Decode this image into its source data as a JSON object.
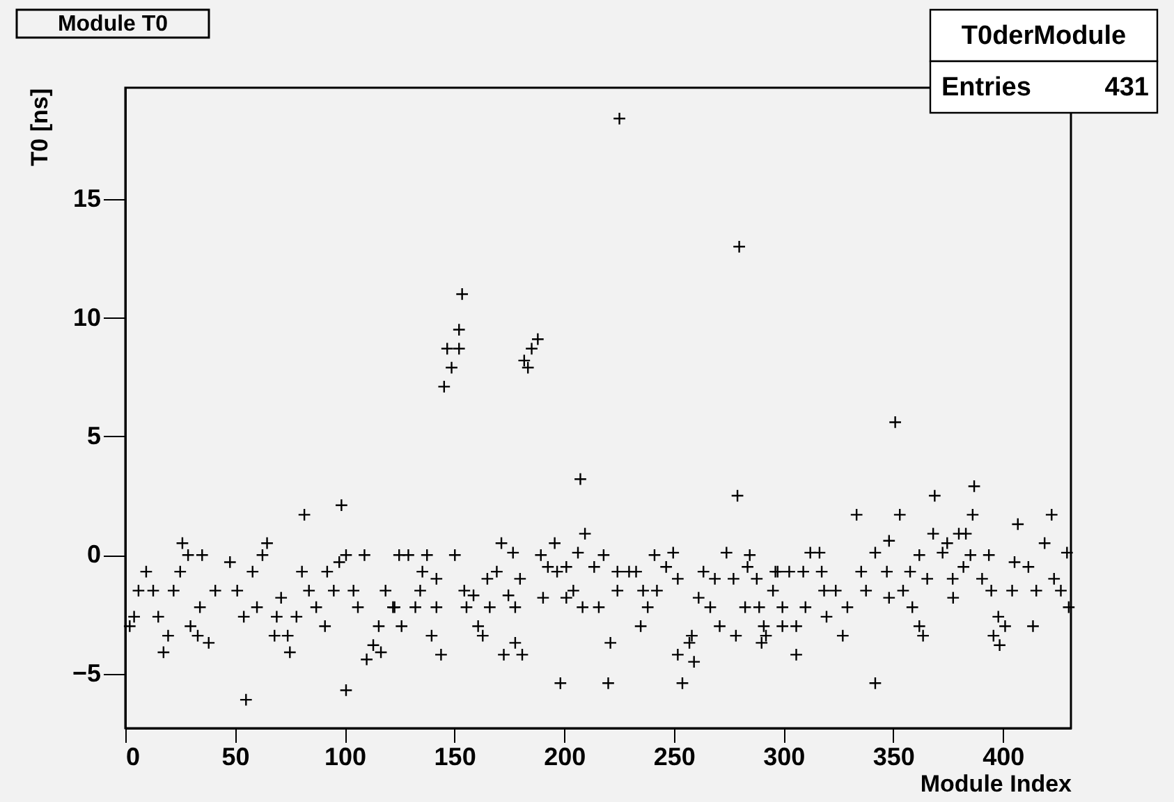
{
  "chart_data": {
    "type": "scatter",
    "title": "Module T0",
    "xlabel": "Module Index",
    "ylabel": "T0 [ns]",
    "annotations": [
      "T0derModule",
      "Entries 431"
    ],
    "xlim": [
      0,
      431
    ],
    "xticks": [
      0,
      50,
      100,
      150,
      200,
      250,
      300,
      350,
      400
    ],
    "ylim": [
      -7.3,
      19.7
    ],
    "yticks": [
      -5,
      0,
      5,
      10,
      15
    ],
    "grid": false,
    "legend": false,
    "marker": "cross",
    "series": [
      {
        "color": "#000000",
        "x": [
          2,
          4,
          6,
          9.5,
          12.7,
          15,
          17.4,
          19.5,
          22,
          25,
          26,
          28.6,
          35,
          29.7,
          33,
          38,
          34,
          41,
          47.7,
          51,
          54,
          55,
          58,
          60,
          64.6,
          62.5,
          68,
          69,
          71,
          75,
          74,
          78,
          81.6,
          80.5,
          83.7,
          87,
          91,
          92,
          95,
          97.5,
          98.5,
          100.6,
          100.6,
          104,
          106,
          109,
          110,
          113,
          116.5,
          115.5,
          118.6,
          122,
          124.8,
          129,
          137.5,
          150.2,
          135.4,
          141.8,
          134.4,
          122.7,
          132.2,
          141.8,
          125.9,
          139.6,
          143.9,
          154.5,
          158.7,
          155.5,
          160.8,
          162.9,
          165,
          169.3,
          171.4,
          176.7,
          166.1,
          174.6,
          177.7,
          179.9,
          172.5,
          177.7,
          180.9,
          189.4,
          195.7,
          192.6,
          190.4,
          196.8,
          201,
          204.2,
          201,
          198.3,
          207.4,
          209.5,
          206.3,
          213.7,
          218,
          208.4,
          215.8,
          220.1,
          221.1,
          224.3,
          229.6,
          232.8,
          224.3,
          236,
          234.9,
          238.1,
          241.2,
          246.5,
          249.7,
          251.8,
          242.3,
          253.9,
          251.8,
          257.1,
          259.2,
          258.2,
          263.5,
          268.7,
          261.3,
          266.6,
          270.9,
          274,
          277.2,
          278.3,
          279,
          284.6,
          283.6,
          287.8,
          282.5,
          288.9,
          291,
          290,
          292,
          296.3,
          295.2,
          145.3,
          146.7,
          148.7,
          152.1,
          152.1,
          153.5,
          181.8,
          183.5,
          185.2,
          188,
          225.2,
          279.8,
          350.9,
          297.3,
          299.5,
          299.5,
          305.8,
          305.8,
          302.6,
          309,
          310,
          312.2,
          316.4,
          317.4,
          318.5,
          323.8,
          319.6,
          327,
          329.1,
          333.3,
          335.4,
          337.6,
          341.8,
          341.8,
          347.1,
          348.1,
          348.1,
          353,
          354.5,
          358.7,
          357.7,
          361.9,
          361.9,
          363.6,
          365.5,
          368.2,
          368.9,
          372.5,
          374.6,
          377.1,
          377.3,
          379.9,
          383.1,
          382,
          386.2,
          386.9,
          385.2,
          390.5,
          393.6,
          394.7,
          397.9,
          395.7,
          398.5,
          401,
          404.2,
          406.8,
          405.3,
          411.6,
          413.7,
          415.2,
          419,
          422.2,
          423.3,
          426.4,
          429.2,
          430
        ],
        "values": [
          -3.0,
          -2.6,
          -1.5,
          -0.7,
          -1.5,
          -2.6,
          -4.1,
          -3.4,
          -1.5,
          -0.7,
          0.5,
          0,
          0,
          -3.0,
          -3.4,
          -3.7,
          -2.2,
          -1.5,
          -0.3,
          -1.5,
          -2.6,
          -6.1,
          -0.7,
          -2.2,
          0.5,
          0,
          -3.4,
          -2.6,
          -1.8,
          -4.1,
          -3.4,
          -2.6,
          1.7,
          -0.7,
          -1.5,
          -2.2,
          -3.0,
          -0.7,
          -1.5,
          -0.3,
          2.1,
          -5.7,
          0,
          -1.5,
          -2.2,
          0,
          -4.4,
          -3.8,
          -4.1,
          -3.0,
          -1.5,
          -2.2,
          0,
          0,
          0,
          0,
          -0.7,
          -1.0,
          -1.5,
          -2.2,
          -2.2,
          -2.2,
          -3.0,
          -3.4,
          -4.2,
          -1.5,
          -1.7,
          -2.2,
          -3.0,
          -3.4,
          -1.0,
          -0.7,
          0.5,
          0.1,
          -2.2,
          -1.7,
          -2.2,
          -1.0,
          -4.2,
          -3.7,
          -4.2,
          0,
          0.5,
          -0.5,
          -1.8,
          -0.7,
          -0.5,
          -1.5,
          -1.8,
          -5.4,
          3.2,
          0.9,
          0.1,
          -0.5,
          0,
          -2.2,
          -2.2,
          -5.4,
          -3.7,
          -0.7,
          -0.7,
          -0.7,
          -1.5,
          -1.5,
          -3.0,
          -2.2,
          0,
          -0.5,
          0.1,
          -1.0,
          -1.5,
          -5.4,
          -4.2,
          -3.7,
          -4.5,
          -3.4,
          -0.7,
          -1.0,
          -1.8,
          -2.2,
          -3.0,
          0.1,
          -1.0,
          -3.4,
          2.5,
          0,
          -0.5,
          -1.0,
          -2.2,
          -2.2,
          -3.0,
          -3.7,
          -3.4,
          -0.7,
          -1.5,
          7.1,
          8.7,
          7.9,
          8.7,
          9.5,
          11.0,
          8.2,
          7.9,
          8.7,
          9.1,
          18.4,
          13.0,
          5.6,
          -0.7,
          -2.2,
          -3.0,
          -3.0,
          -4.2,
          -0.7,
          -0.7,
          -2.2,
          0.1,
          0.1,
          -0.7,
          -1.5,
          -1.5,
          -2.6,
          -3.4,
          -2.2,
          1.7,
          -0.7,
          -1.5,
          -5.4,
          0.1,
          -0.7,
          0.6,
          -1.8,
          1.7,
          -1.5,
          -2.2,
          -0.7,
          0,
          -3.0,
          -3.4,
          -1.0,
          0.9,
          2.5,
          0.1,
          0.5,
          -1.0,
          -1.8,
          0.9,
          0.9,
          -0.5,
          1.7,
          2.9,
          0,
          -1.0,
          0,
          -1.5,
          -2.6,
          -3.4,
          -3.8,
          -3.0,
          -1.5,
          1.3,
          -0.3,
          -0.5,
          -3.0,
          -1.5,
          0.5,
          1.7,
          -1.0,
          -1.5,
          0.1,
          -2.2
        ]
      }
    ]
  }
}
